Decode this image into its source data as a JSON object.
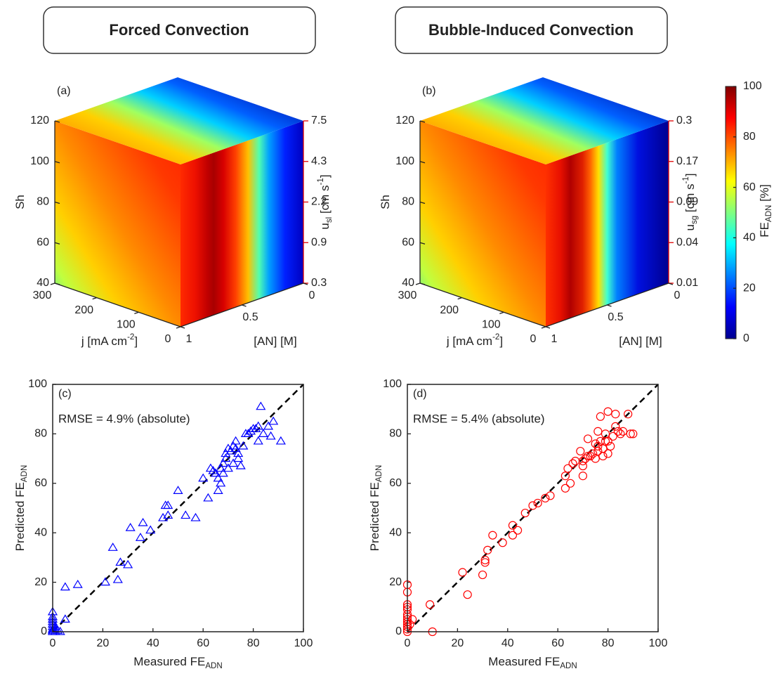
{
  "chart_data": [
    {
      "type": "cube3d",
      "title": "Forced Convection",
      "panel": "(a)",
      "zlabel": [
        "Sh"
      ],
      "zlim": [
        40,
        120
      ],
      "zticks": [
        40,
        60,
        80,
        100,
        120
      ],
      "z2label": [
        "u",
        {
          "sub": "sl"
        },
        " [cm s",
        {
          "sup": "-1"
        },
        "]"
      ],
      "z2categories": [
        "0.3",
        "0.9",
        "2.2",
        "4.3",
        "7.5"
      ],
      "z2color": "#e00000",
      "xlabel": [
        "j [mA cm",
        {
          "sup": "-2"
        },
        "]"
      ],
      "xlim": [
        0,
        300
      ],
      "xticks": [
        0,
        100,
        200,
        300
      ],
      "ylabel": [
        "[AN] [M]"
      ],
      "ylim": [
        0,
        1
      ],
      "yticks": [
        0,
        0.5,
        1
      ]
    },
    {
      "type": "cube3d",
      "title": "Bubble-Induced Convection",
      "panel": "(b)",
      "zlabel": [
        "Sh"
      ],
      "zlim": [
        40,
        120
      ],
      "zticks": [
        40,
        60,
        80,
        100,
        120
      ],
      "z2label": [
        "u",
        {
          "sub": "sg"
        },
        " [cm s",
        {
          "sup": "-1"
        },
        "]"
      ],
      "z2categories": [
        "0.01",
        "0.04",
        "0.09",
        "0.17",
        "0.3"
      ],
      "z2color": "#e00000",
      "xlabel": [
        "j [mA cm",
        {
          "sup": "-2"
        },
        "]"
      ],
      "xlim": [
        0,
        300
      ],
      "xticks": [
        0,
        100,
        200,
        300
      ],
      "ylabel": [
        "[AN] [M]"
      ],
      "ylim": [
        0,
        1
      ],
      "yticks": [
        0,
        0.5,
        1
      ]
    },
    {
      "type": "colorbar",
      "label": [
        "FE",
        {
          "sub": "ADN"
        },
        " [%]"
      ],
      "clim": [
        0,
        100
      ],
      "ticks": [
        0,
        20,
        40,
        60,
        80,
        100
      ],
      "colormap": "jet"
    },
    {
      "type": "scatter",
      "panel": "(c)",
      "annotation": "RMSE = 4.9% (absolute)",
      "marker": "triangle",
      "color": "#0000ff",
      "identity_line": true,
      "xlabel": [
        "Measured FE",
        {
          "sub": "ADN"
        }
      ],
      "ylabel": [
        "Predicted FE",
        {
          "sub": "ADN"
        }
      ],
      "xlim": [
        0,
        100
      ],
      "ylim": [
        0,
        100
      ],
      "xticks": [
        0,
        20,
        40,
        60,
        80,
        100
      ],
      "yticks": [
        0,
        20,
        40,
        60,
        80,
        100
      ],
      "x": [
        0,
        0,
        0,
        0,
        0,
        0,
        0,
        0,
        0,
        1,
        1,
        1,
        2,
        3,
        5,
        5,
        10,
        21,
        24,
        26,
        27,
        30,
        31,
        35,
        36,
        39,
        44,
        45,
        46,
        46,
        50,
        53,
        57,
        60,
        62,
        63,
        64,
        65,
        66,
        66,
        67,
        67,
        68,
        68,
        69,
        69,
        70,
        70,
        71,
        72,
        72,
        73,
        73,
        74,
        74,
        75,
        76,
        77,
        78,
        80,
        81,
        82,
        82,
        84,
        86,
        87,
        88,
        83,
        91,
        79
      ],
      "values": [
        8,
        6,
        5,
        4,
        3,
        2,
        1,
        0.5,
        0,
        1,
        0,
        2,
        0.5,
        0,
        5,
        18,
        19,
        20,
        34,
        21,
        28,
        27,
        42,
        38,
        44,
        41,
        46,
        51,
        51,
        47,
        57,
        47,
        46,
        62,
        54,
        66,
        65,
        64,
        57,
        62,
        60,
        66,
        64,
        68,
        70,
        72,
        74,
        66,
        73,
        75,
        68,
        77,
        74,
        72,
        70,
        67,
        75,
        80,
        80,
        82,
        82,
        83,
        77,
        80,
        83,
        79,
        85,
        91,
        77,
        81
      ]
    },
    {
      "type": "scatter",
      "panel": "(d)",
      "annotation": "RMSE = 5.4% (absolute)",
      "marker": "circle",
      "color": "#ff0000",
      "identity_line": true,
      "xlabel": [
        "Measured FE",
        {
          "sub": "ADN"
        }
      ],
      "ylabel": [
        "Predicted FE",
        {
          "sub": "ADN"
        }
      ],
      "xlim": [
        0,
        100
      ],
      "ylim": [
        0,
        100
      ],
      "xticks": [
        0,
        20,
        40,
        60,
        80,
        100
      ],
      "yticks": [
        0,
        20,
        40,
        60,
        80,
        100
      ],
      "x": [
        0,
        0,
        0,
        0,
        0,
        0,
        0,
        0,
        0,
        0,
        0,
        0,
        0,
        1,
        2,
        9,
        10,
        22,
        24,
        30,
        31,
        31,
        32,
        34,
        38,
        42,
        42,
        44,
        47,
        50,
        52,
        55,
        57,
        63,
        63,
        64,
        65,
        66,
        67,
        69,
        70,
        70,
        70,
        71,
        72,
        72,
        73,
        74,
        75,
        75,
        76,
        76,
        76,
        77,
        78,
        78,
        79,
        79,
        80,
        80,
        80,
        81,
        82,
        83,
        83,
        84,
        85,
        86,
        88,
        89,
        90,
        77
      ],
      "values": [
        19,
        16,
        11,
        10,
        9,
        7,
        6,
        5,
        4,
        3,
        2,
        1,
        0,
        3,
        5,
        11,
        0,
        24,
        15,
        23,
        29,
        28,
        33,
        39,
        36,
        43,
        39,
        41,
        48,
        51,
        52,
        54,
        55,
        58,
        63,
        66,
        60,
        68,
        69,
        73,
        63,
        67,
        69,
        70,
        71,
        78,
        71,
        72,
        76,
        70,
        73,
        75,
        81,
        77,
        74,
        71,
        80,
        77,
        77,
        89,
        72,
        75,
        79,
        83,
        88,
        81,
        80,
        81,
        88,
        80,
        80,
        87
      ]
    }
  ]
}
